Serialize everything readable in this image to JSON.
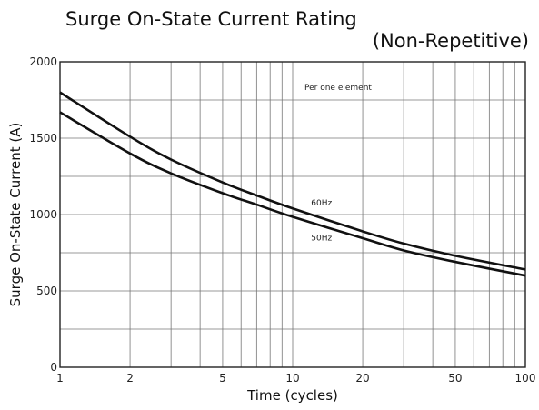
{
  "chart_data": {
    "type": "line",
    "title": "Surge On-State Current Rating",
    "subtitle": "(Non-Repetitive)",
    "xlabel": "Time (cycles)",
    "ylabel": "Surge On-State Current (A)",
    "x_scale": "log",
    "xlim": [
      1,
      100
    ],
    "ylim": [
      0,
      2000
    ],
    "x_ticks": [
      1,
      2,
      5,
      10,
      20,
      50,
      100
    ],
    "y_ticks": [
      0,
      500,
      1000,
      1500,
      2000
    ],
    "grid": true,
    "annotations": [
      "Per one element"
    ],
    "series": [
      {
        "name": "60Hz",
        "x": [
          1,
          2,
          3,
          5,
          7,
          10,
          20,
          30,
          50,
          100
        ],
        "y": [
          1800,
          1510,
          1360,
          1210,
          1125,
          1040,
          890,
          810,
          730,
          640
        ]
      },
      {
        "name": "50Hz",
        "x": [
          1,
          2,
          3,
          5,
          7,
          10,
          20,
          30,
          50,
          100
        ],
        "y": [
          1670,
          1400,
          1270,
          1140,
          1065,
          985,
          845,
          765,
          690,
          600
        ]
      }
    ]
  }
}
